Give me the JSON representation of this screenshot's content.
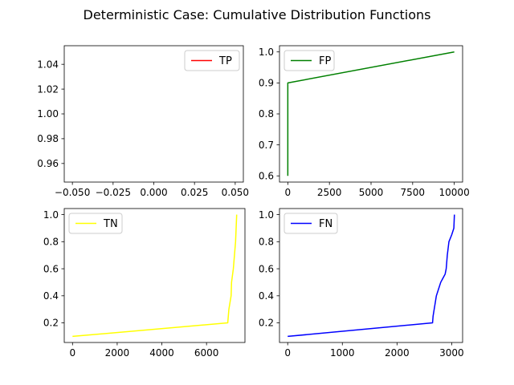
{
  "figure": {
    "title": "Deterministic Case: Cumulative Distribution Functions"
  },
  "chart_data": [
    {
      "type": "line",
      "legend": "TP",
      "color": "#ff0000",
      "legend_placement": "top-right",
      "x": [],
      "y": [],
      "xlim": [
        -0.055,
        0.055
      ],
      "ylim": [
        0.945,
        1.055
      ],
      "xticks": [
        -0.05,
        -0.025,
        0.0,
        0.025,
        0.05
      ],
      "xtick_labels": [
        "−0.050",
        "−0.025",
        "0.000",
        "0.025",
        "0.050"
      ],
      "yticks": [
        0.96,
        0.98,
        1.0,
        1.02,
        1.04
      ],
      "ytick_labels": [
        "0.96",
        "0.98",
        "1.00",
        "1.02",
        "1.04"
      ],
      "grid": false
    },
    {
      "type": "line",
      "legend": "FP",
      "color": "#008000",
      "legend_placement": "top-left",
      "x": [
        0,
        0,
        10000
      ],
      "y": [
        0.6,
        0.9,
        1.0
      ],
      "xlim": [
        -500,
        10500
      ],
      "ylim": [
        0.58,
        1.02
      ],
      "xticks": [
        0,
        2500,
        5000,
        7500,
        10000
      ],
      "xtick_labels": [
        "0",
        "2500",
        "5000",
        "7500",
        "10000"
      ],
      "yticks": [
        0.6,
        0.7,
        0.8,
        0.9,
        1.0
      ],
      "ytick_labels": [
        "0.6",
        "0.7",
        "0.8",
        "0.9",
        "1.0"
      ],
      "grid": false
    },
    {
      "type": "line",
      "legend": "TN",
      "color": "#ffff00",
      "legend_placement": "top-left",
      "x": [
        0,
        6950,
        7000,
        7100,
        7120,
        7200,
        7250,
        7300,
        7350
      ],
      "y": [
        0.1,
        0.2,
        0.3,
        0.4,
        0.5,
        0.6,
        0.7,
        0.8,
        1.0
      ],
      "xlim": [
        -370,
        7720
      ],
      "ylim": [
        0.055,
        1.045
      ],
      "xticks": [
        0,
        2000,
        4000,
        6000
      ],
      "xtick_labels": [
        "0",
        "2000",
        "4000",
        "6000"
      ],
      "yticks": [
        0.2,
        0.4,
        0.6,
        0.8,
        1.0
      ],
      "ytick_labels": [
        "0.2",
        "0.4",
        "0.6",
        "0.8",
        "1.0"
      ],
      "grid": false
    },
    {
      "type": "line",
      "legend": "FN",
      "color": "#0000ff",
      "legend_placement": "top-left",
      "x": [
        0,
        2650,
        2660,
        2680,
        2700,
        2720,
        2760,
        2800,
        2840,
        2880,
        2900,
        2920,
        2950,
        3000,
        3040,
        3050
      ],
      "y": [
        0.1,
        0.2,
        0.25,
        0.3,
        0.35,
        0.4,
        0.45,
        0.5,
        0.53,
        0.56,
        0.6,
        0.7,
        0.8,
        0.85,
        0.9,
        1.0
      ],
      "xlim": [
        -150,
        3200
      ],
      "ylim": [
        0.055,
        1.045
      ],
      "xticks": [
        0,
        1000,
        2000,
        3000
      ],
      "xtick_labels": [
        "0",
        "1000",
        "2000",
        "3000"
      ],
      "yticks": [
        0.2,
        0.4,
        0.6,
        0.8,
        1.0
      ],
      "ytick_labels": [
        "0.2",
        "0.4",
        "0.6",
        "0.8",
        "1.0"
      ],
      "grid": false
    }
  ]
}
